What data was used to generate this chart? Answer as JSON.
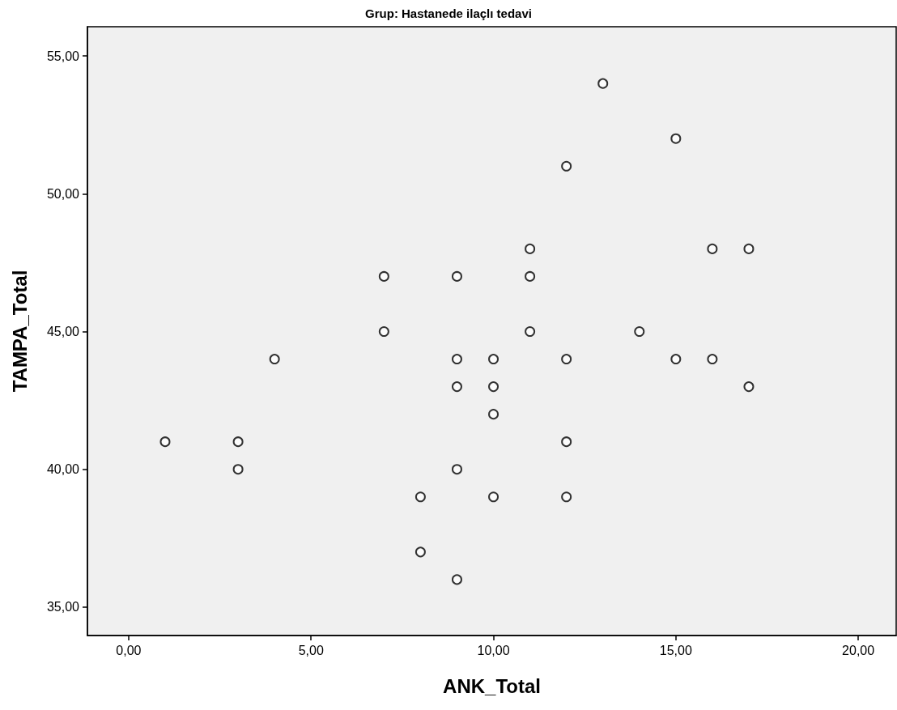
{
  "chart_data": {
    "type": "scatter",
    "title": "Grup: Hastanede ilaçlı tedavi",
    "xlabel": "ANK_Total",
    "ylabel": "TAMPA_Total",
    "x": [
      1,
      3,
      3,
      4,
      7,
      7,
      8,
      8,
      9,
      9,
      9,
      9,
      9,
      10,
      10,
      10,
      10,
      11,
      11,
      11,
      12,
      12,
      12,
      12,
      13,
      14,
      15,
      15,
      16,
      16,
      17,
      17
    ],
    "series": [
      {
        "color": "#000000",
        "values": [
          41,
          41,
          40,
          44,
          47,
          45,
          39,
          37,
          47,
          44,
          43,
          40,
          36,
          44,
          43,
          42,
          39,
          48,
          47,
          45,
          51,
          44,
          41,
          39,
          54,
          45,
          52,
          44,
          48,
          44,
          48,
          43
        ]
      }
    ],
    "xlim": [
      -1.13,
      21.04
    ],
    "ylim": [
      33.97,
      56.06
    ],
    "xticks": [
      {
        "value": 0,
        "label": "0,00"
      },
      {
        "value": 5,
        "label": "5,00"
      },
      {
        "value": 10,
        "label": "10,00"
      },
      {
        "value": 15,
        "label": "15,00"
      },
      {
        "value": 20,
        "label": "20,00"
      }
    ],
    "yticks": [
      {
        "value": 35,
        "label": "35,00"
      },
      {
        "value": 40,
        "label": "40,00"
      },
      {
        "value": 45,
        "label": "45,00"
      },
      {
        "value": 50,
        "label": "50,00"
      },
      {
        "value": 55,
        "label": "55,00"
      }
    ],
    "grid": false,
    "marker": "circle"
  }
}
